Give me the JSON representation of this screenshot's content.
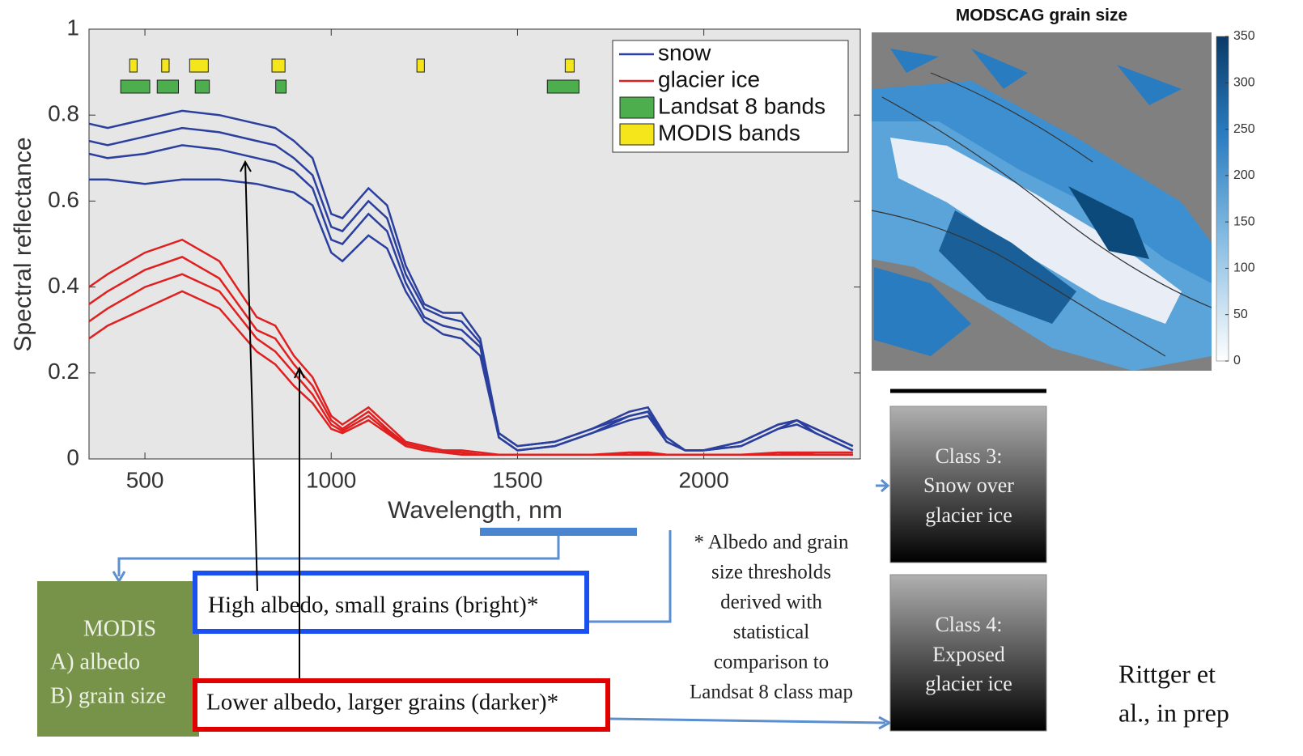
{
  "chart_data": [
    {
      "type": "line",
      "xlabel": "Wavelength, nm",
      "ylabel": "Spectral reflectance",
      "xlim": [
        350,
        2420
      ],
      "ylim": [
        0,
        1
      ],
      "xticks": [
        500,
        1000,
        1500,
        2000
      ],
      "yticks": [
        0,
        0.2,
        0.4,
        0.6,
        0.8,
        1
      ],
      "x": [
        350,
        400,
        500,
        600,
        700,
        800,
        850,
        900,
        950,
        1000,
        1030,
        1100,
        1150,
        1200,
        1250,
        1300,
        1350,
        1400,
        1450,
        1500,
        1600,
        1700,
        1800,
        1850,
        1900,
        1950,
        2000,
        2100,
        2200,
        2250,
        2300,
        2400
      ],
      "series": [
        {
          "name": "snow",
          "color": "#2b3f9e",
          "values": [
            [
              0.78,
              0.77,
              0.79,
              0.81,
              0.8,
              0.78,
              0.77,
              0.74,
              0.7,
              0.57,
              0.56,
              0.63,
              0.59,
              0.45,
              0.36,
              0.34,
              0.34,
              0.28,
              0.06,
              0.03,
              0.04,
              0.07,
              0.11,
              0.12,
              0.05,
              0.02,
              0.02,
              0.04,
              0.08,
              0.09,
              0.07,
              0.03
            ],
            [
              0.74,
              0.73,
              0.75,
              0.77,
              0.76,
              0.74,
              0.73,
              0.7,
              0.66,
              0.54,
              0.53,
              0.6,
              0.56,
              0.43,
              0.35,
              0.33,
              0.32,
              0.27,
              0.06,
              0.03,
              0.04,
              0.07,
              0.1,
              0.11,
              0.05,
              0.02,
              0.02,
              0.04,
              0.08,
              0.09,
              0.07,
              0.03
            ],
            [
              0.71,
              0.7,
              0.71,
              0.73,
              0.72,
              0.7,
              0.69,
              0.67,
              0.63,
              0.51,
              0.5,
              0.57,
              0.53,
              0.41,
              0.33,
              0.31,
              0.3,
              0.26,
              0.05,
              0.02,
              0.03,
              0.06,
              0.1,
              0.11,
              0.04,
              0.02,
              0.02,
              0.03,
              0.07,
              0.09,
              0.06,
              0.02
            ],
            [
              0.65,
              0.65,
              0.64,
              0.65,
              0.65,
              0.64,
              0.63,
              0.62,
              0.59,
              0.48,
              0.46,
              0.52,
              0.49,
              0.39,
              0.32,
              0.29,
              0.28,
              0.24,
              0.05,
              0.02,
              0.03,
              0.06,
              0.09,
              0.1,
              0.04,
              0.02,
              0.02,
              0.03,
              0.07,
              0.08,
              0.06,
              0.02
            ]
          ]
        },
        {
          "name": "glacier ice",
          "color": "#e02020",
          "values": [
            [
              0.4,
              0.43,
              0.48,
              0.51,
              0.46,
              0.33,
              0.31,
              0.24,
              0.19,
              0.1,
              0.08,
              0.12,
              0.08,
              0.04,
              0.03,
              0.02,
              0.02,
              0.015,
              0.01,
              0.01,
              0.01,
              0.01,
              0.015,
              0.015,
              0.01,
              0.01,
              0.01,
              0.01,
              0.015,
              0.015,
              0.015,
              0.015
            ],
            [
              0.36,
              0.39,
              0.44,
              0.47,
              0.42,
              0.3,
              0.28,
              0.22,
              0.17,
              0.09,
              0.07,
              0.11,
              0.07,
              0.035,
              0.025,
              0.02,
              0.015,
              0.01,
              0.01,
              0.01,
              0.01,
              0.01,
              0.01,
              0.015,
              0.01,
              0.01,
              0.01,
              0.01,
              0.01,
              0.015,
              0.01,
              0.01
            ],
            [
              0.32,
              0.35,
              0.4,
              0.43,
              0.39,
              0.28,
              0.25,
              0.2,
              0.15,
              0.08,
              0.065,
              0.1,
              0.065,
              0.03,
              0.02,
              0.015,
              0.015,
              0.01,
              0.01,
              0.01,
              0.01,
              0.01,
              0.01,
              0.01,
              0.01,
              0.01,
              0.01,
              0.01,
              0.01,
              0.01,
              0.01,
              0.01
            ],
            [
              0.28,
              0.31,
              0.35,
              0.39,
              0.35,
              0.25,
              0.22,
              0.17,
              0.13,
              0.07,
              0.06,
              0.09,
              0.06,
              0.03,
              0.02,
              0.015,
              0.01,
              0.01,
              0.01,
              0.01,
              0.01,
              0.01,
              0.01,
              0.01,
              0.01,
              0.01,
              0.01,
              0.01,
              0.01,
              0.01,
              0.01,
              0.01
            ]
          ]
        }
      ],
      "bands": [
        {
          "name": "Landsat 8 bands",
          "color": "#4cae4c",
          "ranges": [
            [
              435,
              513
            ],
            [
              533,
              590
            ],
            [
              635,
              673
            ],
            [
              851,
              879
            ],
            [
              1580,
              1665
            ]
          ]
        },
        {
          "name": "MODIS bands",
          "color": "#f5e61c",
          "ranges": [
            [
              459,
              479
            ],
            [
              545,
              565
            ],
            [
              620,
              670
            ],
            [
              841,
              876
            ],
            [
              1230,
              1250
            ],
            [
              1628,
              1652
            ]
          ]
        }
      ]
    },
    {
      "type": "heatmap",
      "title": "MODSCAG grain size",
      "clim": [
        0,
        350
      ],
      "cticks": [
        0,
        50,
        100,
        150,
        200,
        250,
        300,
        350
      ]
    }
  ],
  "diagram": {
    "modis": [
      "MODIS",
      "A) albedo",
      "B) grain size"
    ],
    "high": "High albedo, small grains (bright)*",
    "low": "Lower albedo, larger grains (darker)*",
    "note": [
      "* Albedo and grain",
      "size thresholds",
      "derived with",
      "statistical",
      "comparison to",
      "Landsat 8 class map"
    ],
    "class3": [
      "Class 3:",
      "Snow over",
      "glacier ice"
    ],
    "class4": [
      "Class 4:",
      "Exposed",
      "glacier ice"
    ],
    "citation": [
      "Rittger et",
      "al., in prep"
    ]
  }
}
